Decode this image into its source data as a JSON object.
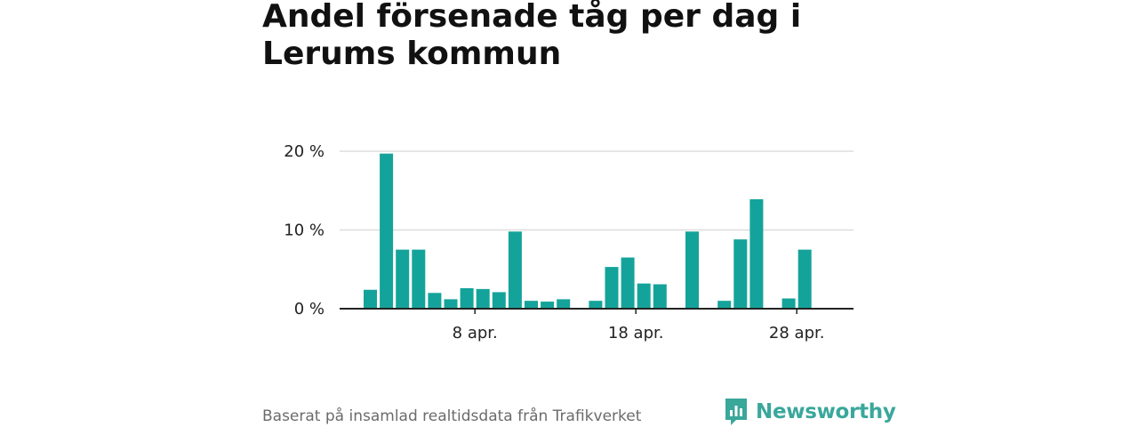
{
  "chart_data": {
    "type": "bar",
    "title": "Andel försenade tåg per dag i Lerums kommun",
    "xlabel": "",
    "ylabel": "",
    "ylim": [
      0,
      20
    ],
    "y_ticks": [
      {
        "value": 0,
        "label": "0 %"
      },
      {
        "value": 10,
        "label": "10 %"
      },
      {
        "value": 20,
        "label": "20 %"
      }
    ],
    "x_ticks": [
      {
        "day": 8,
        "label": "8 apr."
      },
      {
        "day": 18,
        "label": "18 apr."
      },
      {
        "day": 28,
        "label": "28 apr."
      }
    ],
    "bar_color": "#14a39a",
    "days": [
      1,
      2,
      3,
      4,
      5,
      6,
      7,
      8,
      9,
      10,
      11,
      12,
      13,
      14,
      15,
      16,
      17,
      18,
      19,
      20,
      21,
      22,
      23,
      24,
      25,
      26,
      27,
      28,
      29,
      30
    ],
    "values": [
      2.4,
      19.7,
      7.5,
      7.5,
      2.0,
      1.2,
      2.6,
      2.5,
      2.1,
      9.8,
      1.0,
      0.9,
      1.2,
      0,
      1.0,
      5.3,
      6.5,
      3.2,
      3.1,
      0,
      9.8,
      0,
      1.0,
      8.8,
      13.9,
      0,
      1.3,
      7.5,
      0,
      0
    ]
  },
  "footer": {
    "source": "Baserat på insamlad realtidsdata från Trafikverket",
    "brand": "Newsworthy",
    "brand_color": "#3aa79b"
  }
}
